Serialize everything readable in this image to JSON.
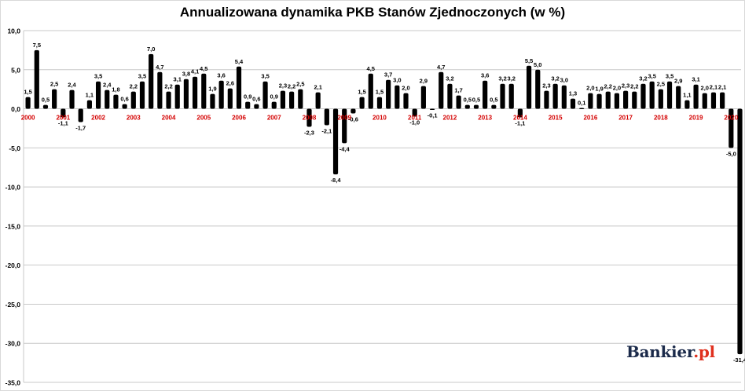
{
  "chart_data": {
    "type": "bar",
    "title": "Annualizowana dynamika PKB Stanów Zjednoczonych (w %)",
    "ylim": [
      -35,
      10
    ],
    "yticks": [
      "10,0",
      "5,0",
      "0,0",
      "-5,0",
      "-10,0",
      "-15,0",
      "-20,0",
      "-25,0",
      "-30,0",
      "-35,0"
    ],
    "ytick_values": [
      10,
      5,
      0,
      -5,
      -10,
      -15,
      -20,
      -25,
      -30,
      -35
    ],
    "grid": true,
    "bar_color": "#000000",
    "year_label_color": "#d40000",
    "year_labels": [
      {
        "label": "2000",
        "q": 0
      },
      {
        "label": "2001",
        "q": 4
      },
      {
        "label": "2002",
        "q": 8
      },
      {
        "label": "2003",
        "q": 12
      },
      {
        "label": "2004",
        "q": 16
      },
      {
        "label": "2005",
        "q": 20
      },
      {
        "label": "2006",
        "q": 24
      },
      {
        "label": "2007",
        "q": 28
      },
      {
        "label": "2008",
        "q": 32
      },
      {
        "label": "2009",
        "q": 36
      },
      {
        "label": "2010",
        "q": 40
      },
      {
        "label": "2011",
        "q": 44
      },
      {
        "label": "2012",
        "q": 48
      },
      {
        "label": "2013",
        "q": 52
      },
      {
        "label": "2014",
        "q": 56
      },
      {
        "label": "2015",
        "q": 60
      },
      {
        "label": "2016",
        "q": 64
      },
      {
        "label": "2017",
        "q": 68
      },
      {
        "label": "2018",
        "q": 72
      },
      {
        "label": "2019",
        "q": 76
      },
      {
        "label": "2020",
        "q": 80
      }
    ],
    "values": [
      1.5,
      7.5,
      0.5,
      2.5,
      -1.1,
      2.4,
      -1.7,
      1.1,
      3.5,
      2.4,
      1.8,
      0.6,
      2.2,
      3.5,
      7.0,
      4.7,
      2.2,
      3.1,
      3.8,
      4.1,
      4.5,
      1.9,
      3.6,
      2.6,
      5.4,
      0.9,
      0.6,
      3.5,
      0.9,
      2.3,
      2.2,
      2.5,
      -2.3,
      2.1,
      -2.1,
      -8.4,
      -4.4,
      -0.6,
      1.5,
      4.5,
      1.5,
      3.7,
      3.0,
      2.0,
      -1.0,
      2.9,
      -0.1,
      4.7,
      3.2,
      1.7,
      0.5,
      0.5,
      3.6,
      0.5,
      3.2,
      3.2,
      -1.1,
      5.5,
      5.0,
      2.3,
      3.2,
      3.0,
      1.3,
      0.1,
      2.0,
      1.9,
      2.2,
      2.0,
      2.3,
      2.2,
      3.2,
      3.5,
      2.5,
      3.5,
      2.9,
      1.1,
      3.1,
      2.0,
      2.1,
      2.1,
      -5.0,
      -31.4
    ],
    "data_labels": [
      "1,5",
      "7,5",
      "0,5",
      "2,5",
      "-1,1",
      "2,4",
      "-1,7",
      "1,1",
      "3,5",
      "2,4",
      "1,8",
      "0,6",
      "2,2",
      "3,5",
      "7,0",
      "4,7",
      "2,2",
      "3,1",
      "3,8",
      "4,1",
      "4,5",
      "1,9",
      "3,6",
      "2,6",
      "5,4",
      "0,9",
      "0,6",
      "3,5",
      "0,9",
      "2,3",
      "2,2",
      "2,5",
      "-2,3",
      "2,1",
      "-2,1",
      "-8,4",
      "-4,4",
      "-0,6",
      "1,5",
      "4,5",
      "1,5",
      "3,7",
      "3,0",
      "2,0",
      "-1,0",
      "2,9",
      "-0,1",
      "4,7",
      "3,2",
      "1,7",
      "0,5",
      "0,5",
      "3,6",
      "0,5",
      "3,2",
      "3,2",
      "-1,1",
      "5,5",
      "5,0",
      "2,3",
      "3,2",
      "3,0",
      "1,3",
      "0,1",
      "2,0",
      "1,9",
      "2,2",
      "2,0",
      "2,3",
      "2,2",
      "3,2",
      "3,5",
      "2,5",
      "3,5",
      "2,9",
      "1,1",
      "3,1",
      "2,0",
      "2,1",
      "2,1",
      "-5,0",
      "-31,4"
    ]
  },
  "brand": {
    "name": "Bankier",
    "suffix": ".pl"
  }
}
